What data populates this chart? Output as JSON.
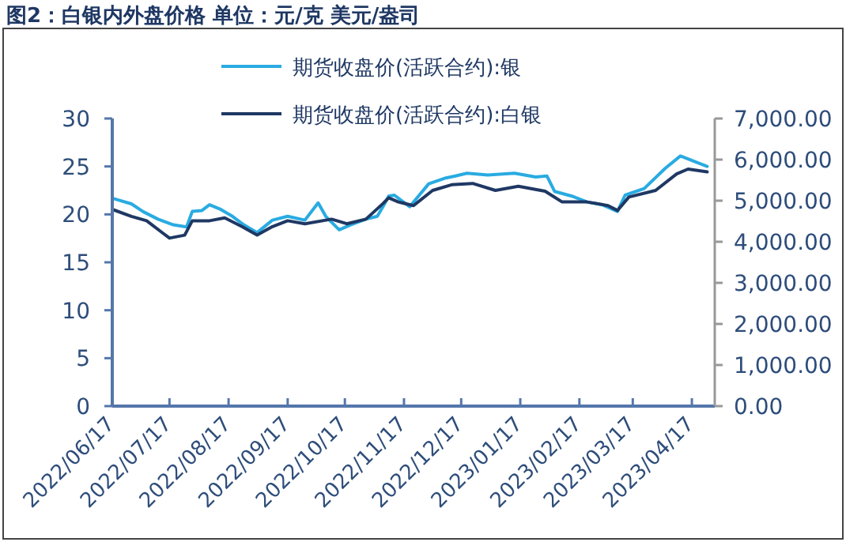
{
  "chart_data": {
    "type": "line",
    "title": "图2：白银内外盘价格 单位：元/克 美元/盎司",
    "legend": "top",
    "grid": false,
    "xlim": [
      "2022-06-17",
      "2023-04-29"
    ],
    "xticks": [
      {
        "value": "2022-06-17",
        "label": "2022/06/17"
      },
      {
        "value": "2022-07-17",
        "label": "2022/07/17"
      },
      {
        "value": "2022-08-17",
        "label": "2022/08/17"
      },
      {
        "value": "2022-09-17",
        "label": "2022/09/17"
      },
      {
        "value": "2022-10-17",
        "label": "2022/10/17"
      },
      {
        "value": "2022-11-17",
        "label": "2022/11/17"
      },
      {
        "value": "2022-12-17",
        "label": "2022/12/17"
      },
      {
        "value": "2023-01-17",
        "label": "2023/01/17"
      },
      {
        "value": "2023-02-17",
        "label": "2023/02/17"
      },
      {
        "value": "2023-03-17",
        "label": "2023/03/17"
      },
      {
        "value": "2023-04-17",
        "label": "2023/04/17"
      }
    ],
    "ylim": [
      0,
      30
    ],
    "yticks": [
      0,
      5,
      10,
      15,
      20,
      25,
      30
    ],
    "y2lim": [
      0,
      7000
    ],
    "y2ticks": [
      {
        "value": 0,
        "label": "0.00"
      },
      {
        "value": 1000,
        "label": "1,000.00"
      },
      {
        "value": 2000,
        "label": "2,000.00"
      },
      {
        "value": 3000,
        "label": "3,000.00"
      },
      {
        "value": 4000,
        "label": "4,000.00"
      },
      {
        "value": 5000,
        "label": "5,000.00"
      },
      {
        "value": 6000,
        "label": "6,000.00"
      },
      {
        "value": 7000,
        "label": "7,000.00"
      }
    ],
    "series": [
      {
        "name": "期货收盘价(活跃合约):银",
        "color": "#29abe2",
        "x": [
          "2022-06-17",
          "2022-06-27",
          "2022-07-03",
          "2022-07-11",
          "2022-07-19",
          "2022-07-26",
          "2022-07-29",
          "2022-08-03",
          "2022-08-07",
          "2022-08-13",
          "2022-08-19",
          "2022-08-25",
          "2022-09-01",
          "2022-09-09",
          "2022-09-17",
          "2022-09-26",
          "2022-10-03",
          "2022-10-07",
          "2022-10-14",
          "2022-10-20",
          "2022-10-28",
          "2022-11-03",
          "2022-11-06",
          "2022-11-09",
          "2022-11-12",
          "2022-11-20",
          "2022-11-30",
          "2022-12-09",
          "2022-12-14",
          "2022-12-20",
          "2022-12-31",
          "2023-01-14",
          "2023-01-25",
          "2023-01-31",
          "2023-02-04",
          "2023-02-13",
          "2023-02-21",
          "2023-03-01",
          "2023-03-09",
          "2023-03-13",
          "2023-03-23",
          "2023-04-03",
          "2023-04-11",
          "2023-04-20",
          "2023-04-25"
        ],
        "values": [
          21.7,
          21.1,
          20.3,
          19.5,
          18.9,
          18.7,
          20.3,
          20.4,
          21.0,
          20.5,
          19.8,
          18.9,
          18.1,
          19.4,
          19.8,
          19.4,
          21.2,
          19.8,
          18.4,
          18.9,
          19.5,
          19.8,
          20.8,
          21.9,
          22.0,
          20.8,
          23.2,
          23.8,
          24.0,
          24.3,
          24.1,
          24.3,
          23.9,
          24.0,
          22.4,
          21.9,
          21.3,
          21.0,
          20.3,
          22.0,
          22.7,
          24.8,
          26.1,
          25.4,
          25.0
        ]
      },
      {
        "name": "期货收盘价(活跃合约):白银",
        "color": "#1f3864",
        "axis": "y2",
        "x": [
          "2022-06-17",
          "2022-06-27",
          "2022-07-05",
          "2022-07-13",
          "2022-07-17",
          "2022-07-25",
          "2022-07-29",
          "2022-08-07",
          "2022-08-15",
          "2022-08-24",
          "2022-09-01",
          "2022-09-09",
          "2022-09-17",
          "2022-09-26",
          "2022-10-10",
          "2022-10-18",
          "2022-10-28",
          "2022-11-06",
          "2022-11-09",
          "2022-11-14",
          "2022-11-22",
          "2022-12-02",
          "2022-12-12",
          "2022-12-23",
          "2023-01-04",
          "2023-01-16",
          "2023-01-30",
          "2023-02-08",
          "2023-02-21",
          "2023-03-04",
          "2023-03-09",
          "2023-03-15",
          "2023-03-29",
          "2023-04-09",
          "2023-04-15",
          "2023-04-25"
        ],
        "values": [
          4790,
          4620,
          4510,
          4230,
          4090,
          4160,
          4510,
          4510,
          4580,
          4370,
          4160,
          4370,
          4510,
          4440,
          4550,
          4440,
          4550,
          4930,
          5070,
          4970,
          4880,
          5250,
          5390,
          5420,
          5250,
          5350,
          5230,
          4970,
          4970,
          4880,
          4760,
          5090,
          5250,
          5650,
          5770,
          5700
        ]
      }
    ]
  }
}
